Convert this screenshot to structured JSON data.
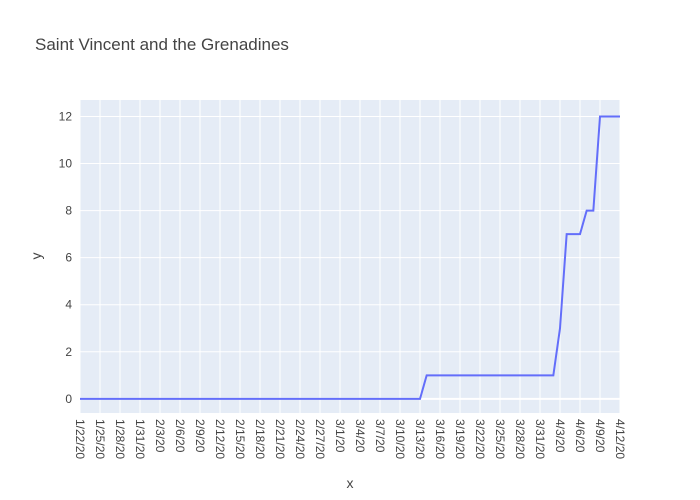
{
  "chart_data": {
    "type": "line",
    "title": "Saint Vincent and the Grenadines",
    "xlabel": "x",
    "ylabel": "y",
    "ylim": [
      -0.6,
      12.7
    ],
    "yticks": [
      0,
      2,
      4,
      6,
      8,
      10,
      12
    ],
    "xtick_labels": [
      "1/22/20",
      "1/25/20",
      "1/28/20",
      "1/31/20",
      "2/3/20",
      "2/6/20",
      "2/9/20",
      "2/12/20",
      "2/15/20",
      "2/18/20",
      "2/21/20",
      "2/24/20",
      "2/27/20",
      "3/1/20",
      "3/4/20",
      "3/7/20",
      "3/10/20",
      "3/13/20",
      "3/16/20",
      "3/19/20",
      "3/22/20",
      "3/25/20",
      "3/28/20",
      "3/31/20",
      "4/3/20",
      "4/6/20",
      "4/9/20",
      "4/12/20"
    ],
    "grid": true,
    "line_color": "#636efa",
    "plot_bg": "#e5ecf6",
    "x": [
      "1/22/20",
      "1/23/20",
      "1/24/20",
      "1/25/20",
      "1/26/20",
      "1/27/20",
      "1/28/20",
      "1/29/20",
      "1/30/20",
      "1/31/20",
      "2/1/20",
      "2/2/20",
      "2/3/20",
      "2/4/20",
      "2/5/20",
      "2/6/20",
      "2/7/20",
      "2/8/20",
      "2/9/20",
      "2/10/20",
      "2/11/20",
      "2/12/20",
      "2/13/20",
      "2/14/20",
      "2/15/20",
      "2/16/20",
      "2/17/20",
      "2/18/20",
      "2/19/20",
      "2/20/20",
      "2/21/20",
      "2/22/20",
      "2/23/20",
      "2/24/20",
      "2/25/20",
      "2/26/20",
      "2/27/20",
      "2/28/20",
      "2/29/20",
      "3/1/20",
      "3/2/20",
      "3/3/20",
      "3/4/20",
      "3/5/20",
      "3/6/20",
      "3/7/20",
      "3/8/20",
      "3/9/20",
      "3/10/20",
      "3/11/20",
      "3/12/20",
      "3/13/20",
      "3/14/20",
      "3/15/20",
      "3/16/20",
      "3/17/20",
      "3/18/20",
      "3/19/20",
      "3/20/20",
      "3/21/20",
      "3/22/20",
      "3/23/20",
      "3/24/20",
      "3/25/20",
      "3/26/20",
      "3/27/20",
      "3/28/20",
      "3/29/20",
      "3/30/20",
      "3/31/20",
      "4/1/20",
      "4/2/20",
      "4/3/20",
      "4/4/20",
      "4/5/20",
      "4/6/20",
      "4/7/20",
      "4/8/20",
      "4/9/20",
      "4/10/20",
      "4/11/20",
      "4/12/20"
    ],
    "values": [
      0,
      0,
      0,
      0,
      0,
      0,
      0,
      0,
      0,
      0,
      0,
      0,
      0,
      0,
      0,
      0,
      0,
      0,
      0,
      0,
      0,
      0,
      0,
      0,
      0,
      0,
      0,
      0,
      0,
      0,
      0,
      0,
      0,
      0,
      0,
      0,
      0,
      0,
      0,
      0,
      0,
      0,
      0,
      0,
      0,
      0,
      0,
      0,
      0,
      0,
      0,
      0,
      1,
      1,
      1,
      1,
      1,
      1,
      1,
      1,
      1,
      1,
      1,
      1,
      1,
      1,
      1,
      1,
      1,
      1,
      1,
      1,
      3,
      7,
      7,
      7,
      8,
      8,
      12,
      12,
      12,
      12
    ]
  }
}
